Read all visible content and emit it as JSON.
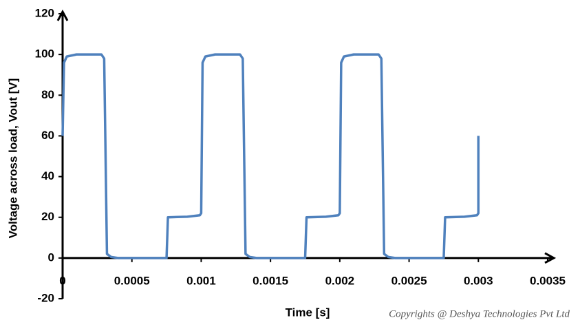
{
  "chart_data": {
    "type": "line",
    "ylabel": "Voltage across load, Vout [V]",
    "xlabel": "Time [s]",
    "annotation": "Copyrights @ Deshya Technologies Pvt Ltd",
    "xlim": [
      0,
      0.0035
    ],
    "xticks": [
      0,
      0.0005,
      0.001,
      0.0015,
      0.002,
      0.0025,
      0.003,
      0.0035
    ],
    "ylim": [
      -20,
      120
    ],
    "yticks": [
      -20,
      0,
      20,
      40,
      60,
      80,
      100,
      120
    ],
    "grid": false,
    "x": [
      0,
      1e-05,
      3e-05,
      0.0001,
      0.00028,
      0.0003,
      0.00032,
      0.00035,
      0.0004,
      0.00075,
      0.00076,
      0.0009,
      0.00099,
      0.001,
      0.00101,
      0.00103,
      0.0011,
      0.00128,
      0.0013,
      0.00132,
      0.00135,
      0.0014,
      0.00175,
      0.00176,
      0.0019,
      0.00199,
      0.002,
      0.00201,
      0.00203,
      0.0021,
      0.00228,
      0.0023,
      0.00232,
      0.00235,
      0.0024,
      0.00275,
      0.00276,
      0.0029,
      0.00299,
      0.003,
      0.003
    ],
    "series": [
      {
        "name": "Vout",
        "color": "#4f81bd",
        "values": [
          60,
          96,
          99,
          100,
          100,
          98,
          2,
          0.5,
          0,
          0,
          20,
          20.3,
          21,
          22,
          96,
          99,
          100,
          100,
          98,
          2,
          0.5,
          0,
          0,
          20,
          20.3,
          21,
          22,
          96,
          99,
          100,
          100,
          98,
          2,
          0.5,
          0,
          0,
          20,
          20.3,
          21,
          22,
          60
        ]
      }
    ]
  }
}
